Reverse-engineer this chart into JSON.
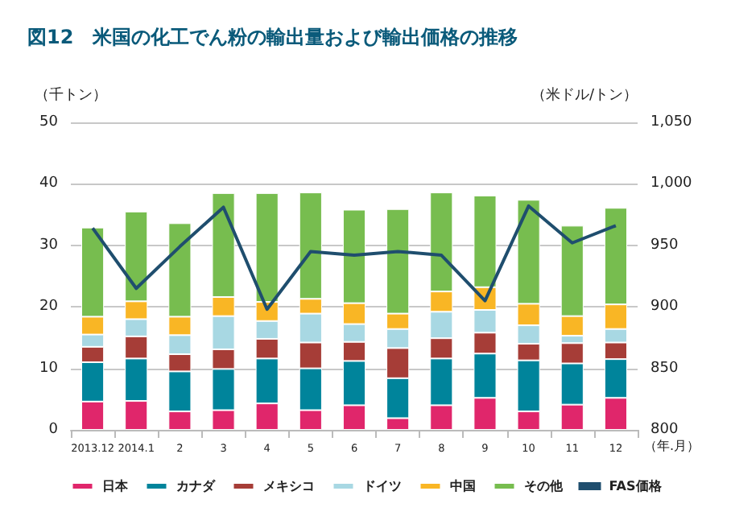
{
  "chart_data": {
    "type": "bar",
    "stacked": true,
    "title": "図12　米国の化工でん粉の輸出量および輸出価格の推移",
    "ylabel": "（千トン）",
    "y2label": "（米ドル/トン）",
    "xlabel": "（年.月）",
    "categories": [
      "2013.12",
      "2014.1",
      "2",
      "3",
      "4",
      "5",
      "6",
      "7",
      "8",
      "9",
      "10",
      "11",
      "12"
    ],
    "series": [
      {
        "name": "日本",
        "color": "#e0266b",
        "values": [
          4.6,
          4.7,
          3.0,
          3.2,
          4.3,
          3.2,
          4.0,
          1.9,
          4.0,
          5.2,
          3.0,
          4.1,
          5.2
        ]
      },
      {
        "name": "カナダ",
        "color": "#00849b",
        "values": [
          6.4,
          6.9,
          6.5,
          6.7,
          7.3,
          6.8,
          7.2,
          6.5,
          7.6,
          7.2,
          8.3,
          6.7,
          6.3
        ]
      },
      {
        "name": "メキシコ",
        "color": "#a63d37",
        "values": [
          2.5,
          3.6,
          2.8,
          3.2,
          3.2,
          4.2,
          3.1,
          4.9,
          3.3,
          3.4,
          2.7,
          3.3,
          2.7
        ]
      },
      {
        "name": "ドイツ",
        "color": "#a8d8e3",
        "values": [
          2.0,
          2.8,
          3.1,
          5.4,
          2.9,
          4.7,
          2.9,
          3.1,
          4.3,
          3.7,
          3.0,
          1.2,
          2.2
        ]
      },
      {
        "name": "中国",
        "color": "#f9b625",
        "values": [
          2.9,
          2.9,
          3.0,
          3.1,
          3.1,
          2.4,
          3.4,
          2.5,
          3.3,
          3.7,
          3.5,
          3.2,
          4.0
        ]
      },
      {
        "name": "その他",
        "color": "#77bd4f",
        "values": [
          14.5,
          14.6,
          15.2,
          16.9,
          17.7,
          17.3,
          15.2,
          17.0,
          16.1,
          14.9,
          16.9,
          14.7,
          15.7
        ]
      },
      {
        "name": "FAS価格",
        "type": "line",
        "axis": "y2",
        "color": "#1f4e6e",
        "marker": "none",
        "values": [
          964,
          915,
          949,
          981,
          898,
          945,
          942,
          945,
          942,
          905,
          982,
          952,
          966
        ]
      }
    ],
    "ylim": [
      0,
      50
    ],
    "yticks": [
      0,
      10,
      20,
      30,
      40,
      50
    ],
    "y2lim": [
      800,
      1050
    ],
    "y2ticks": [
      800,
      850,
      900,
      950,
      {
        "value": 1000,
        "label": "1,000"
      },
      {
        "value": 1050,
        "label": "1,050"
      }
    ],
    "grid": "y",
    "legend": "bottom"
  }
}
